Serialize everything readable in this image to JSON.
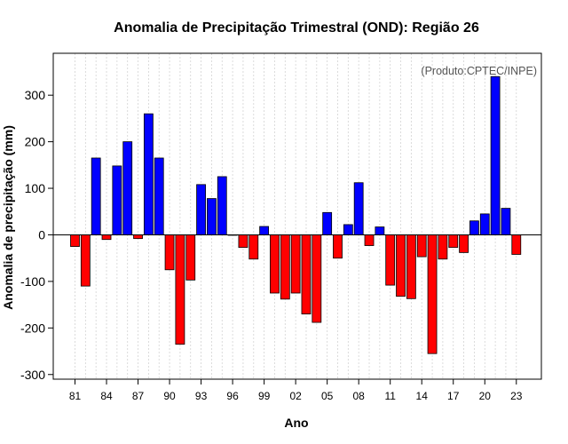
{
  "chart_data": {
    "type": "bar",
    "title": "Anomalia de Precipitação Trimestral (OND): Região 26",
    "xlabel": "Ano",
    "ylabel": "Anomalia de precipitação (mm)",
    "credit": "(Produto:CPTEC/INPE)",
    "ylim": [
      -310,
      390
    ],
    "yticks": [
      -300,
      -200,
      -100,
      0,
      100,
      200,
      300
    ],
    "x": [
      1981,
      1982,
      1983,
      1984,
      1985,
      1986,
      1987,
      1988,
      1989,
      1990,
      1991,
      1992,
      1993,
      1994,
      1995,
      1996,
      1997,
      1998,
      1999,
      2000,
      2001,
      2002,
      2003,
      2004,
      2005,
      2006,
      2007,
      2008,
      2009,
      2010,
      2011,
      2012,
      2013,
      2014,
      2015,
      2016,
      2017,
      2018,
      2019,
      2020,
      2021,
      2022,
      2023
    ],
    "values": [
      -25,
      -110,
      165,
      -10,
      148,
      200,
      -8,
      260,
      165,
      -75,
      -235,
      -97,
      108,
      78,
      125,
      0,
      -27,
      -52,
      18,
      -125,
      -138,
      -125,
      -170,
      -188,
      48,
      -50,
      22,
      112,
      -23,
      17,
      -108,
      -132,
      -137,
      -47,
      -255,
      -52,
      -27,
      -38,
      30,
      45,
      340,
      57,
      -42
    ],
    "xtick_labels": [
      "81",
      "84",
      "87",
      "90",
      "93",
      "96",
      "99",
      "02",
      "05",
      "08",
      "11",
      "14",
      "17",
      "20",
      "23"
    ],
    "xtick_years": [
      1981,
      1984,
      1987,
      1990,
      1993,
      1996,
      1999,
      2002,
      2005,
      2008,
      2011,
      2014,
      2017,
      2020,
      2023
    ],
    "colors": {
      "positive": "#0000ff",
      "negative": "#ff0000",
      "grid": "#d3d3d3",
      "frame": "#000000"
    },
    "grid": true
  }
}
